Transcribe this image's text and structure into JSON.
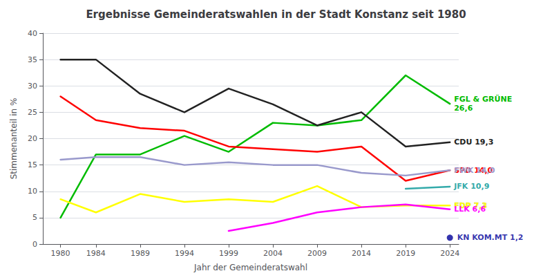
{
  "chart_data": {
    "type": "line",
    "title": "Ergebnisse Gemeinderatswahlen in der Stadt Konstanz seit 1980",
    "xlabel": "Jahr der Gemeinderatswahl",
    "ylabel": "Stimmenanteil in %",
    "x": [
      1980,
      1984,
      1989,
      1994,
      1999,
      2004,
      2009,
      2014,
      2019,
      2024
    ],
    "xlim": [
      1978,
      2025
    ],
    "xticks": [
      1980,
      1984,
      1989,
      1994,
      1999,
      2004,
      2009,
      2014,
      2019,
      2024
    ],
    "ylim": [
      0,
      40
    ],
    "yticks": [
      0,
      5,
      10,
      15,
      20,
      25,
      30,
      35,
      40
    ],
    "grid": true,
    "series": [
      {
        "name": "FGL & GRÜNE\n26,6",
        "color": "#00bb00",
        "values": [
          5.0,
          17.0,
          17.0,
          20.5,
          17.5,
          23.0,
          22.5,
          23.5,
          32.0,
          26.6
        ]
      },
      {
        "name": "CDU 19,3",
        "color": "#222222",
        "values": [
          35.0,
          35.0,
          28.5,
          25.0,
          29.5,
          26.5,
          22.5,
          25.0,
          18.5,
          19.3
        ]
      },
      {
        "name": "SPD 14,0",
        "color": "#ff0000",
        "values": [
          28.0,
          23.5,
          22.0,
          21.5,
          18.5,
          18.0,
          17.5,
          18.5,
          12.0,
          14.0
        ]
      },
      {
        "name": "FWK 14,0",
        "color": "#9999cc",
        "values": [
          16.0,
          16.5,
          16.5,
          15.0,
          15.5,
          15.0,
          15.0,
          13.5,
          13.0,
          14.0
        ]
      },
      {
        "name": "JFK 10,9",
        "color": "#33aaaa",
        "values": [
          null,
          null,
          null,
          null,
          null,
          null,
          null,
          null,
          10.5,
          10.9
        ]
      },
      {
        "name": "FDP 7,3",
        "color": "#ffff00",
        "values": [
          8.5,
          6.0,
          9.5,
          8.0,
          8.5,
          8.0,
          11.0,
          7.0,
          7.3,
          7.3
        ]
      },
      {
        "name": "LLK 6,6",
        "color": "#ff00ff",
        "values": [
          null,
          null,
          null,
          null,
          2.5,
          4.0,
          6.0,
          7.0,
          7.5,
          6.6
        ]
      },
      {
        "name": "KN KOM.MT 1,2",
        "color": "#000099",
        "type": "scatter",
        "marker": "circle",
        "values": [
          null,
          null,
          null,
          null,
          null,
          null,
          null,
          null,
          null,
          1.2
        ]
      }
    ]
  }
}
